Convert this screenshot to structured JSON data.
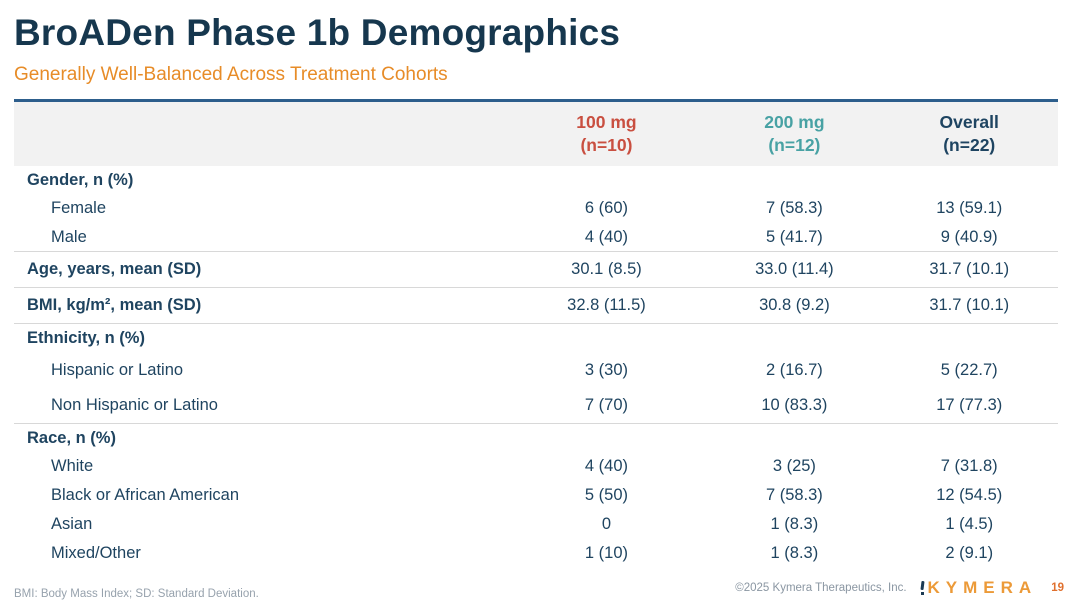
{
  "slide": {
    "title": "BroADen Phase 1b Demographics",
    "subtitle": "Generally Well-Balanced Across Treatment Cohorts"
  },
  "table": {
    "columns": [
      {
        "label": "100 mg",
        "n": "(n=10)",
        "color": "#C94F40"
      },
      {
        "label": "200 mg",
        "n": "(n=12)",
        "color": "#48A2A4"
      },
      {
        "label": "Overall",
        "n": "(n=22)",
        "color": "#1E4461"
      }
    ],
    "rows": [
      {
        "label": "Gender, n (%)",
        "values": [
          "",
          "",
          ""
        ]
      },
      {
        "label": "Female",
        "values": [
          "6 (60)",
          "7 (58.3)",
          "13 (59.1)"
        ]
      },
      {
        "label": "Male",
        "values": [
          "4 (40)",
          "5 (41.7)",
          "9 (40.9)"
        ]
      },
      {
        "label": "Age, years, mean (SD)",
        "values": [
          "30.1 (8.5)",
          "33.0 (11.4)",
          "31.7 (10.1)"
        ]
      },
      {
        "label": "BMI, kg/m², mean (SD)",
        "values": [
          "32.8 (11.5)",
          "30.8 (9.2)",
          "31.7 (10.1)"
        ]
      },
      {
        "label": "Ethnicity, n (%)",
        "values": [
          "",
          "",
          ""
        ]
      },
      {
        "label": "Hispanic or Latino",
        "values": [
          "3 (30)",
          "2 (16.7)",
          "5 (22.7)"
        ]
      },
      {
        "label": "Non Hispanic or Latino",
        "values": [
          "7 (70)",
          "10 (83.3)",
          "17 (77.3)"
        ]
      },
      {
        "label": "Race, n (%)",
        "values": [
          "",
          "",
          ""
        ]
      },
      {
        "label": "White",
        "values": [
          "4 (40)",
          "3 (25)",
          "7 (31.8)"
        ]
      },
      {
        "label": "Black or African American",
        "values": [
          "5 (50)",
          "7 (58.3)",
          "12 (54.5)"
        ]
      },
      {
        "label": "Asian",
        "values": [
          "0",
          "1 (8.3)",
          "1 (4.5)"
        ]
      },
      {
        "label": "Mixed/Other",
        "values": [
          "1 (10)",
          "1 (8.3)",
          "2 (9.1)"
        ]
      }
    ]
  },
  "footer": {
    "footnote": "BMI: Body Mass Index; SD: Standard Deviation.",
    "copyright": "©2025 Kymera Therapeutics, Inc.",
    "logo_text": "KYMERA",
    "page_number": "19"
  },
  "colors": {
    "title_navy": "#16374E",
    "subtitle_orange": "#E78C28",
    "table_text_navy": "#1F4460",
    "col_100mg_red": "#C94F40",
    "col_200mg_teal": "#48A2A4",
    "header_rule_blue": "#2D5E8C",
    "header_bg_gray": "#F2F2F2",
    "divider_gray": "#D8D8D8",
    "footnote_gray": "#97A2AD",
    "logo_orange": "#EC9A38"
  }
}
